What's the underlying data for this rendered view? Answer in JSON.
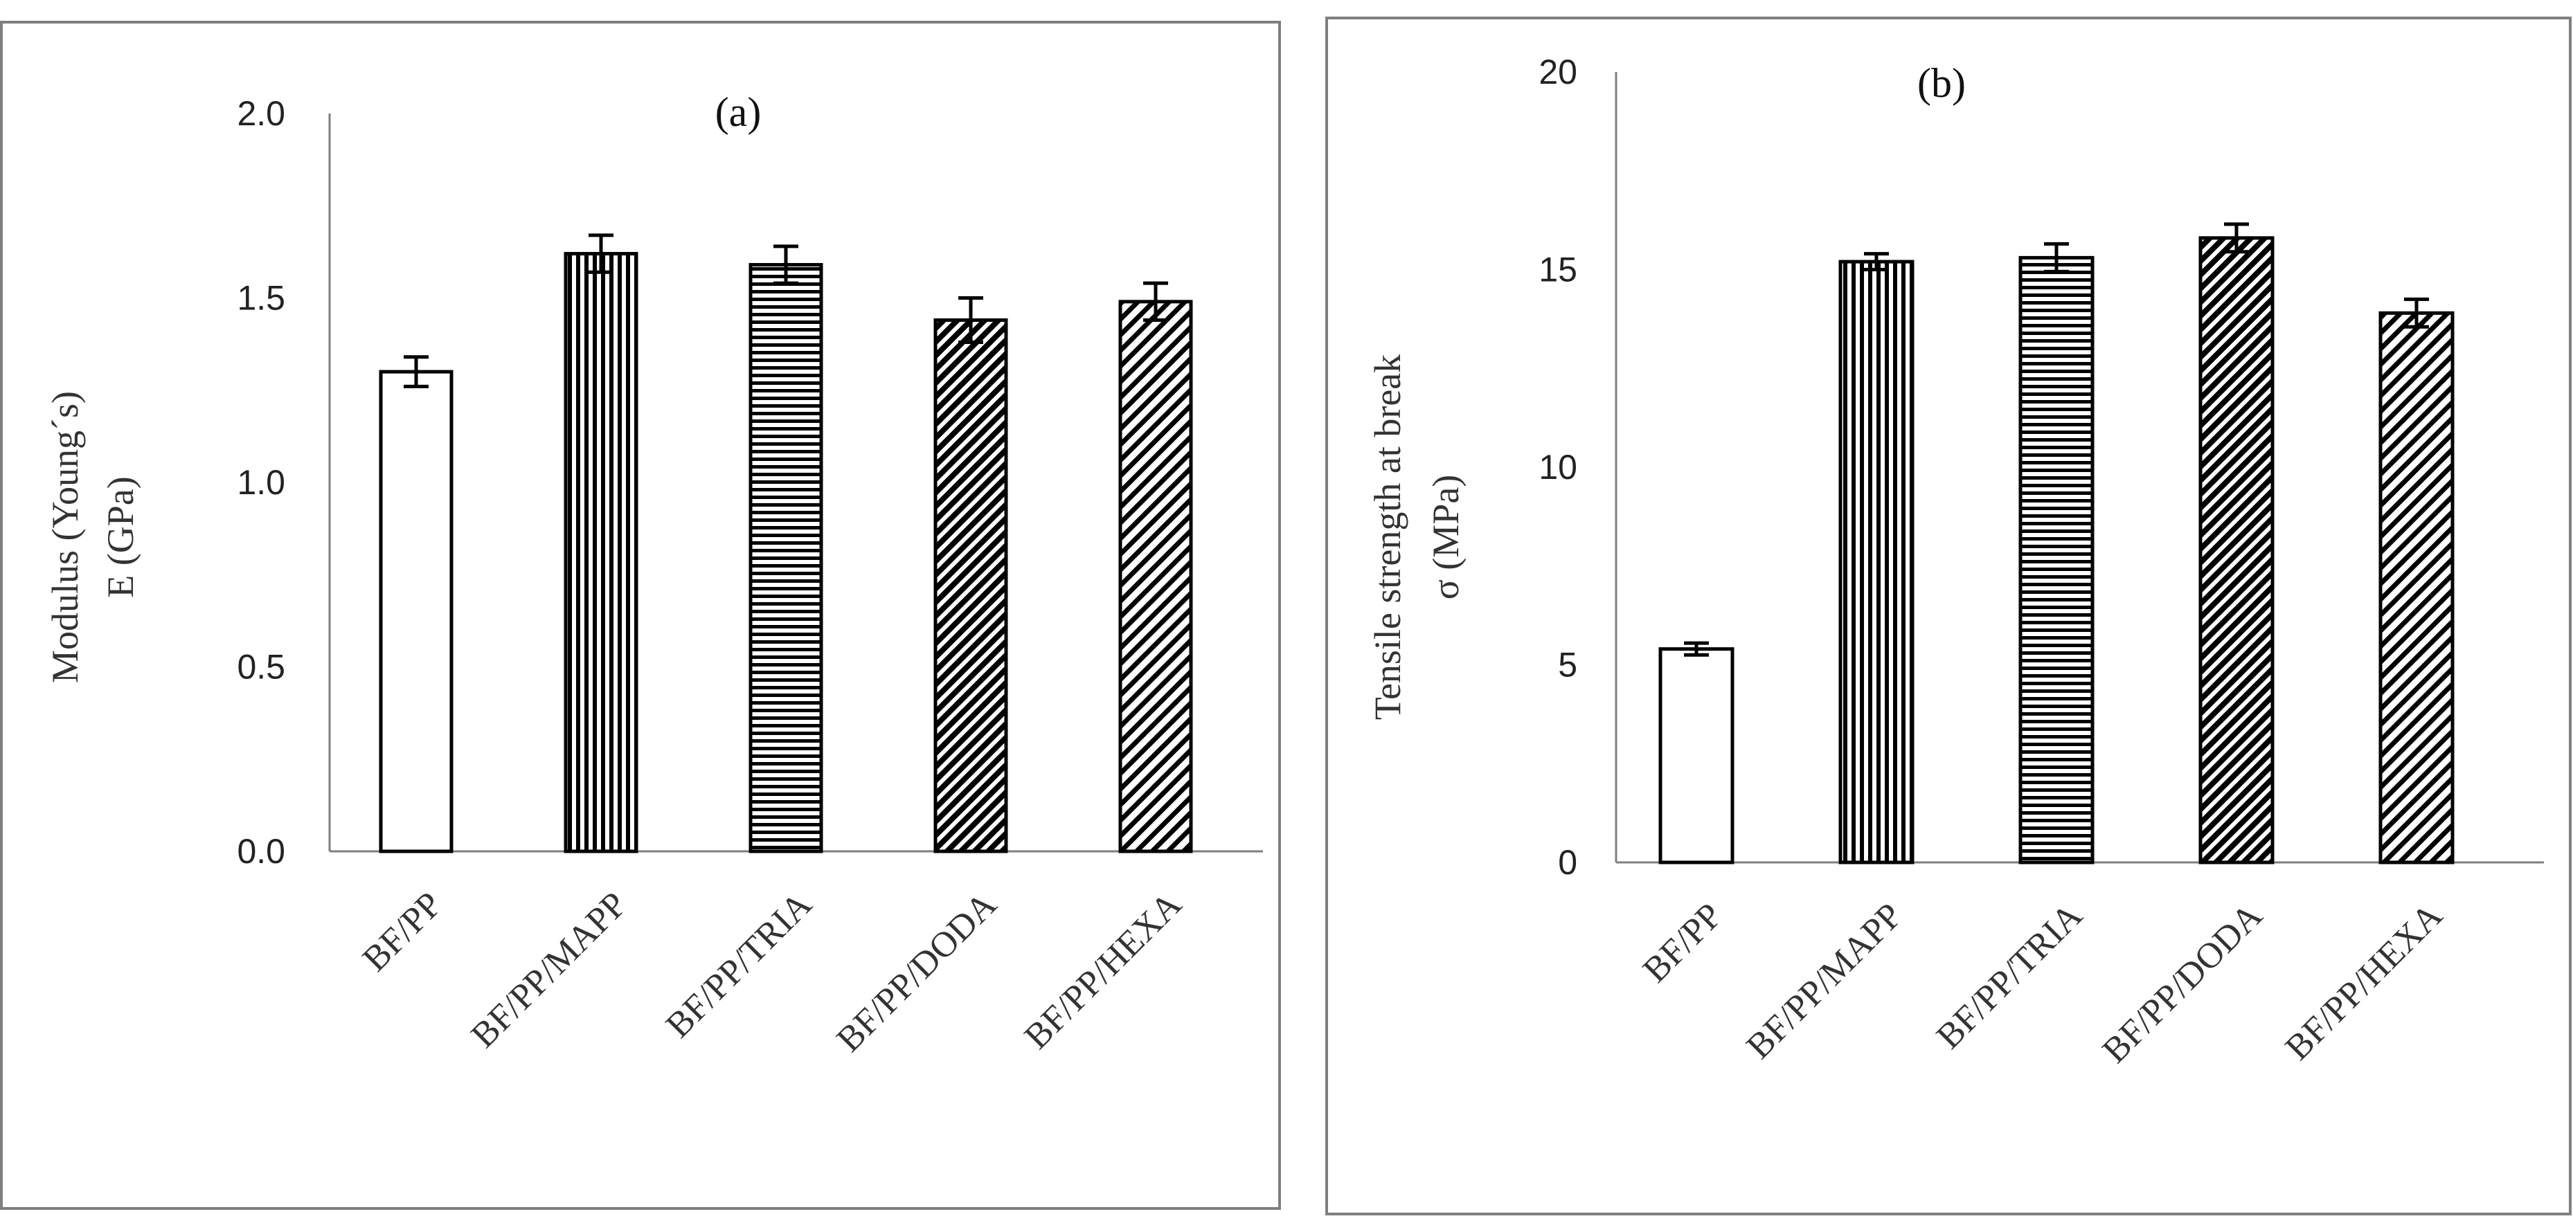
{
  "chart_data": [
    {
      "type": "bar",
      "title": "(a)",
      "ylabel_lines": [
        "Modulus (Young´s)",
        "E   (GPa)"
      ],
      "categories": [
        "BF/PP",
        "BF/PP/MAPP",
        "BF/PP/TRIA",
        "BF/PP/DODA",
        "BF/PP/HEXA"
      ],
      "values": [
        1.3,
        1.62,
        1.59,
        1.44,
        1.49
      ],
      "errors": [
        0.04,
        0.05,
        0.05,
        0.06,
        0.05
      ],
      "patterns": [
        "none",
        "vertical",
        "horizontal",
        "diagonal-dense",
        "diagonal"
      ],
      "ylim": [
        0,
        2.0
      ],
      "yticks": [
        "0.0",
        "0.5",
        "1.0",
        "1.5",
        "2.0"
      ],
      "ytick_values": [
        0,
        0.5,
        1.0,
        1.5,
        2.0
      ],
      "grid": false,
      "legend": "none"
    },
    {
      "type": "bar",
      "title": "(b)",
      "ylabel_lines": [
        "Tensile  strength at break",
        "σ (MPa)"
      ],
      "categories": [
        "BF/PP",
        "BF/PP/MAPP",
        "BF/PP/TRIA",
        "BF/PP/DODA",
        "BF/PP/HEXA"
      ],
      "values": [
        5.4,
        15.2,
        15.3,
        15.8,
        13.9
      ],
      "errors": [
        0.15,
        0.2,
        0.35,
        0.35,
        0.35
      ],
      "patterns": [
        "none",
        "vertical",
        "horizontal",
        "diagonal-dense",
        "diagonal"
      ],
      "ylim": [
        0,
        20
      ],
      "yticks": [
        "0",
        "5",
        "10",
        "15",
        "20"
      ],
      "ytick_values": [
        0,
        5,
        10,
        15,
        20
      ],
      "grid": false,
      "legend": "none"
    }
  ]
}
